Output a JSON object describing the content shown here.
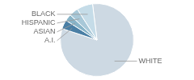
{
  "chart_data": {
    "type": "pie",
    "categories": [
      "WHITE",
      "A.I.",
      "ASIAN",
      "HISPANIC",
      "BLACK"
    ],
    "values": [
      82,
      4,
      3,
      4,
      7
    ],
    "colors": [
      "#cdd9e3",
      "#4a7fa5",
      "#88b4c8",
      "#a8c8d8",
      "#c5dce8"
    ]
  }
}
